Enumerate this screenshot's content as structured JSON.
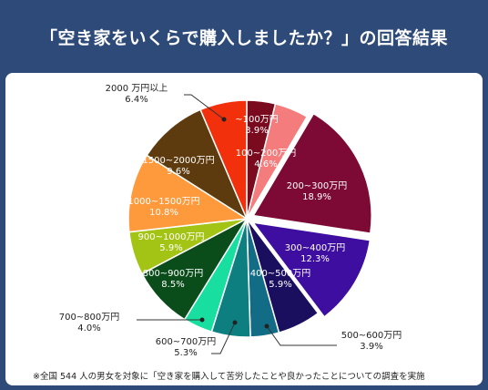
{
  "title": "「空き家をいくらで購入しましたか？」の回答結果",
  "footnote": "※全国 544 人の男女を対象に「空き家を購入して苦労したことや良かったことについての調査を実施",
  "chart_data": {
    "type": "pie",
    "unit": "%",
    "slices": [
      {
        "label": "~100万円",
        "value": 3.9,
        "color": "#7a0a1e",
        "exploded": false
      },
      {
        "label": "100~200万円",
        "value": 4.6,
        "color": "#f47c7c",
        "exploded": false
      },
      {
        "label": "200~300万円",
        "value": 18.9,
        "color": "#7d0a35",
        "exploded": true
      },
      {
        "label": "300~400万円",
        "value": 12.3,
        "color": "#3d0ea0",
        "exploded": true
      },
      {
        "label": "400~500万円",
        "value": 5.9,
        "color": "#1a0f5e",
        "exploded": false
      },
      {
        "label": "500~600万円",
        "value": 3.9,
        "color": "#136c86",
        "exploded": false
      },
      {
        "label": "600~700万円",
        "value": 5.3,
        "color": "#0e7f80",
        "exploded": false
      },
      {
        "label": "700~800万円",
        "value": 4.0,
        "color": "#18dfa0",
        "exploded": false
      },
      {
        "label": "800~900万円",
        "value": 8.5,
        "color": "#0a4d1a",
        "exploded": false
      },
      {
        "label": "900~1000万円",
        "value": 5.9,
        "color": "#a3c414",
        "exploded": false
      },
      {
        "label": "1000~1500万円",
        "value": 10.8,
        "color": "#ff9a3c",
        "exploded": false
      },
      {
        "label": "1500~2000万円",
        "value": 9.6,
        "color": "#5e3b0e",
        "exploded": false
      },
      {
        "label": "2000 万円以上",
        "value": 6.4,
        "color": "#f2300c",
        "exploded": false
      }
    ]
  }
}
